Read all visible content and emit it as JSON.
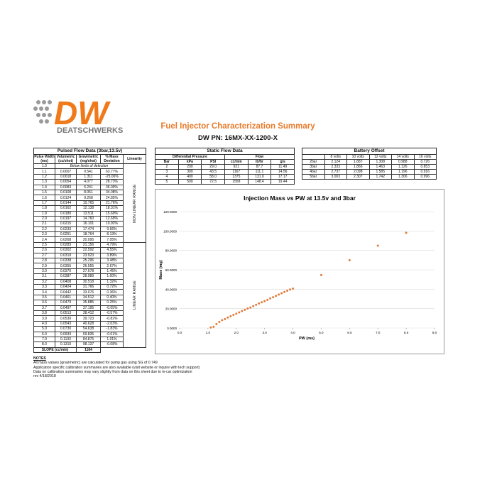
{
  "header": {
    "logo": "DW",
    "brand": "DEATSCHWERKS",
    "title": "Fuel Injector Characterization Summary",
    "part_number": "DW PN: 16MX-XX-1200-X"
  },
  "pulsed": {
    "title": "Pulsed Flow Data (3bar,13.5v)",
    "headers": [
      [
        "Pulse Width",
        "(ms)"
      ],
      [
        "Volumetric",
        "(cc/shot)"
      ],
      [
        "Gravimetric",
        "(mg/shot)"
      ],
      [
        "% Mass",
        "Deviation"
      ],
      [
        "Linearity"
      ]
    ],
    "rows": [
      [
        "1.0",
        "Below limits of detection"
      ],
      [
        "1.1",
        "0.0007",
        "0.541",
        "63.77%"
      ],
      [
        "1.2",
        "0.0018",
        "1.311",
        "-25.06%"
      ],
      [
        "1.3",
        "0.0054",
        "4.077",
        "28.73%"
      ],
      [
        "1.4",
        "0.0083",
        "6.241",
        "36.09%"
      ],
      [
        "1.5",
        "0.0108",
        "8.051",
        "34.08%"
      ],
      [
        "1.6",
        "0.0124",
        "9.268",
        "24.85%"
      ],
      [
        "1.7",
        "0.0144",
        "10.765",
        "21.76%"
      ],
      [
        "1.8",
        "0.0162",
        "12.138",
        "18.31%"
      ],
      [
        "1.9",
        "0.0180",
        "13.511",
        "15.69%"
      ],
      [
        "2.0",
        "0.0197",
        "14.760",
        "12.69%"
      ],
      [
        "2.1",
        "0.0215",
        "16.101",
        "10.92%"
      ],
      [
        "2.2",
        "0.0233",
        "17.474",
        "9.66%"
      ],
      [
        "2.3",
        "0.0251",
        "18.764",
        "8.13%"
      ],
      [
        "2.4",
        "0.0268",
        "20.095",
        "7.05%"
      ],
      [
        "2.5",
        "0.0283",
        "21.156",
        "4.79%"
      ],
      [
        "2.6",
        "0.0302",
        "22.592",
        "4.55%"
      ],
      [
        "2.7",
        "0.0319",
        "23.923",
        "3.89%"
      ],
      [
        "2.8",
        "0.0338",
        "25.296",
        "3.48%"
      ],
      [
        "2.9",
        "0.0355",
        "26.555",
        "2.67%"
      ],
      [
        "3.0",
        "0.0370",
        "27.678",
        "1.45%"
      ],
      [
        "3.1",
        "0.0387",
        "28.989",
        "1.00%"
      ],
      [
        "3.2",
        "0.0408",
        "30.518",
        "1.32%"
      ],
      [
        "3.3",
        "0.0424",
        "31.766",
        "0.72%"
      ],
      [
        "3.4",
        "0.0442",
        "33.076",
        "0.36%"
      ],
      [
        "3.5",
        "0.0461",
        "34.512",
        "0.40%"
      ],
      [
        "3.6",
        "0.0479",
        "35.885",
        "0.25%"
      ],
      [
        "3.7",
        "0.0497",
        "37.195",
        "-0.05%"
      ],
      [
        "3.8",
        "0.0513",
        "38.412",
        "-0.57%"
      ],
      [
        "3.9",
        "0.0530",
        "39.723",
        "-0.82%"
      ],
      [
        "4.0",
        "0.0543",
        "40.628",
        "-2.03%"
      ],
      [
        "5.0",
        "0.0730",
        "54.638",
        "-1.83%"
      ],
      [
        "6.0",
        "0.0933",
        "69.835",
        "-0.01%"
      ],
      [
        "7.0",
        "0.1133",
        "84.875",
        "1.01%"
      ],
      [
        "8.0",
        "0.1310",
        "98.137",
        "-0.08%"
      ]
    ],
    "linearity": [
      "NON LINEAR RANGE",
      "LINEAR RANGE"
    ],
    "slope_label": "SLOPE (cc/min)",
    "slope": "1164"
  },
  "static": {
    "title": "Static Flow Data",
    "groups": [
      "Differential Pressure",
      "Flow"
    ],
    "headers": [
      "Bar",
      "kPa",
      "PSI",
      "cc/min",
      "lb/hr",
      "g/s"
    ],
    "rows": [
      [
        "2",
        "200",
        "29.0",
        "921",
        "87.7",
        "11.49"
      ],
      [
        "3",
        "300",
        "43.5",
        "1167",
        "111.1",
        "14.56"
      ],
      [
        "4",
        "400",
        "58.0",
        "1375",
        "131.0",
        "17.17"
      ],
      [
        "5",
        "500",
        "72.5",
        "1558",
        "148.4",
        "19.44"
      ]
    ]
  },
  "battery": {
    "title": "Battery Offset",
    "headers": [
      "8 volts",
      "10 volts",
      "12 volts",
      "14 volts",
      "16 volts"
    ],
    "rows": [
      [
        "2bar",
        "2.124",
        "1.687",
        "1.308",
        "0.988",
        "0.726"
      ],
      [
        "3bar",
        "2.333",
        "1.866",
        "1.463",
        "1.126",
        "0.853"
      ],
      [
        "4bar",
        "2.737",
        "2.098",
        "1.585",
        "1.196",
        "0.916"
      ],
      [
        "5bar",
        "3.003",
        "2.307",
        "1.742",
        "1.306",
        "0.996"
      ]
    ]
  },
  "chart": {
    "type": "scatter",
    "title": "Injection Mass vs PW at 13.5v and 3bar",
    "x_label": "PW (ms)",
    "y_label": "Mass (mg)",
    "color": "#e07b39",
    "x": [
      1.1,
      1.2,
      1.3,
      1.4,
      1.5,
      1.6,
      1.7,
      1.8,
      1.9,
      2.0,
      2.1,
      2.2,
      2.3,
      2.4,
      2.5,
      2.6,
      2.7,
      2.8,
      2.9,
      3.0,
      3.1,
      3.2,
      3.3,
      3.4,
      3.5,
      3.6,
      3.7,
      3.8,
      3.9,
      4.0,
      5.0,
      6.0,
      7.0,
      8.0
    ],
    "y": [
      0.541,
      1.311,
      4.077,
      6.241,
      8.051,
      9.268,
      10.765,
      12.138,
      13.511,
      14.76,
      16.101,
      17.474,
      18.764,
      20.095,
      21.156,
      22.592,
      23.923,
      25.296,
      26.555,
      27.678,
      28.989,
      30.518,
      31.766,
      33.076,
      34.512,
      35.885,
      37.195,
      38.412,
      39.723,
      40.628,
      54.638,
      69.835,
      84.875,
      98.137
    ],
    "xlim": [
      0,
      9
    ],
    "xticks": [
      {
        "value": 0,
        "label": "0.0"
      },
      {
        "value": 1,
        "label": "1.0"
      },
      {
        "value": 2,
        "label": "2.0"
      },
      {
        "value": 3,
        "label": "3.0"
      },
      {
        "value": 4,
        "label": "4.0"
      },
      {
        "value": 5,
        "label": "5.0"
      },
      {
        "value": 6,
        "label": "6.0"
      },
      {
        "value": 7,
        "label": "7.0"
      },
      {
        "value": 8,
        "label": "8.0"
      },
      {
        "value": 9,
        "label": "9.0"
      }
    ],
    "ylim": [
      0,
      120
    ],
    "yticks": [
      {
        "value": 0,
        "label": "0.0000"
      },
      {
        "value": 20,
        "label": "20.0000"
      },
      {
        "value": 40,
        "label": "40.0000"
      },
      {
        "value": 60,
        "label": "60.0000"
      },
      {
        "value": 80,
        "label": "80.0000"
      },
      {
        "value": 100,
        "label": "100.0000"
      },
      {
        "value": 120,
        "label": "120.0000"
      }
    ]
  },
  "notes": {
    "title": "NOTES",
    "lines": [
      "All mass values (gravimetric) are calculated for pump gas using SG of 0.749",
      "Application specific calibration summaries are also available (visit website or inquire with tech support)",
      "Data on calibration summaries may vary slightly from data on this sheet due to in-car optimization",
      "rev 4/18/2018"
    ]
  }
}
